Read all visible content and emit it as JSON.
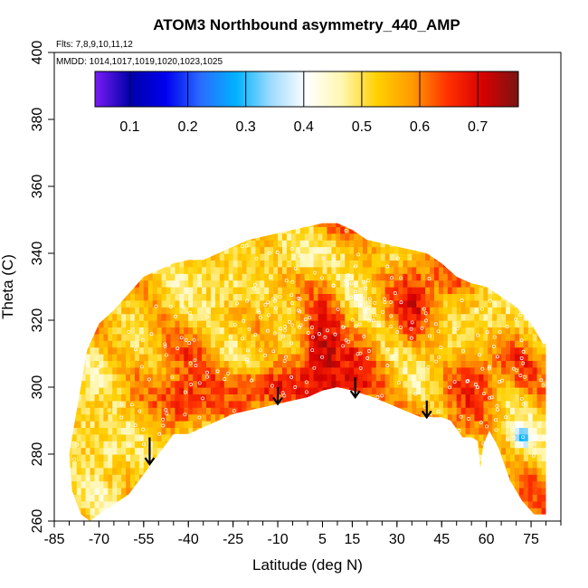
{
  "chart_data": {
    "type": "heatmap",
    "title": "ATOM3 Northbound asymmetry_440_AMP",
    "flights_note": "Flts: 7,8,9,10,11,12",
    "dates_note": "MMDD: 1014,1017,1019,1020,1023,1025",
    "xlabel": "Latitude (deg N)",
    "ylabel": "Theta (C)",
    "xlim": [
      -85,
      85
    ],
    "ylim": [
      260,
      400
    ],
    "x_ticks": [
      -85,
      -70,
      -55,
      -40,
      -25,
      -10,
      5,
      15,
      30,
      45,
      60,
      75
    ],
    "x_tick_labels": [
      "-85",
      "-70",
      "-55",
      "-40",
      "-25",
      "-10",
      "5",
      "15",
      "30",
      "45",
      "60",
      "75"
    ],
    "x_minor_step": 5,
    "y_ticks": [
      260,
      280,
      300,
      320,
      340,
      360,
      380,
      400
    ],
    "y_tick_labels": [
      "260",
      "280",
      "300",
      "320",
      "340",
      "360",
      "380",
      "400"
    ],
    "colorbar": {
      "range": [
        0.04,
        0.77
      ],
      "ticks": [
        0.1,
        0.2,
        0.3,
        0.4,
        0.5,
        0.6,
        0.7
      ],
      "tick_labels": [
        "0.1",
        "0.2",
        "0.3",
        "0.4",
        "0.5",
        "0.6",
        "0.7"
      ],
      "colors": [
        "#7a1cf5",
        "#0000a8",
        "#0000ee",
        "#2a6cff",
        "#00b2ff",
        "#9fdcff",
        "#ffffff",
        "#fff7b0",
        "#ffd000",
        "#ff9a00",
        "#ff3000",
        "#d80000",
        "#7a1414"
      ]
    },
    "domain_top": [
      [
        -74,
        311
      ],
      [
        -70,
        319
      ],
      [
        -65,
        323
      ],
      [
        -60,
        328
      ],
      [
        -55,
        333
      ],
      [
        -50,
        335
      ],
      [
        -45,
        337
      ],
      [
        -40,
        338
      ],
      [
        -35,
        338
      ],
      [
        -30,
        340
      ],
      [
        -25,
        342
      ],
      [
        -20,
        344
      ],
      [
        -15,
        345
      ],
      [
        -10,
        346
      ],
      [
        -5,
        347
      ],
      [
        0,
        348
      ],
      [
        5,
        349
      ],
      [
        10,
        349
      ],
      [
        15,
        347
      ],
      [
        20,
        344
      ],
      [
        25,
        343
      ],
      [
        30,
        342
      ],
      [
        35,
        341
      ],
      [
        40,
        340
      ],
      [
        45,
        337
      ],
      [
        50,
        333
      ],
      [
        55,
        331
      ],
      [
        60,
        330
      ],
      [
        65,
        327
      ],
      [
        70,
        324
      ],
      [
        75,
        319
      ],
      [
        79,
        313
      ],
      [
        80,
        313
      ]
    ],
    "domain_bottom": [
      [
        80,
        262
      ],
      [
        76,
        262
      ],
      [
        72,
        266
      ],
      [
        68,
        272
      ],
      [
        64,
        282
      ],
      [
        61,
        287
      ],
      [
        59,
        283
      ],
      [
        58,
        276
      ],
      [
        57,
        284
      ],
      [
        55,
        285
      ],
      [
        52,
        285
      ],
      [
        48,
        290
      ],
      [
        45,
        291
      ],
      [
        38,
        291
      ],
      [
        30,
        294
      ],
      [
        22,
        297
      ],
      [
        15,
        299
      ],
      [
        10,
        300
      ],
      [
        5,
        299
      ],
      [
        0,
        297
      ],
      [
        -5,
        296
      ],
      [
        -10,
        295
      ],
      [
        -15,
        294
      ],
      [
        -20,
        293
      ],
      [
        -25,
        292
      ],
      [
        -30,
        290
      ],
      [
        -35,
        288
      ],
      [
        -40,
        286
      ],
      [
        -45,
        286
      ],
      [
        -50,
        280
      ],
      [
        -55,
        274
      ],
      [
        -60,
        268
      ],
      [
        -65,
        265
      ],
      [
        -70,
        262
      ],
      [
        -73,
        260
      ],
      [
        -76,
        262
      ],
      [
        -79,
        269
      ],
      [
        -80,
        280
      ]
    ],
    "field_base": 0.55,
    "anomalies": [
      {
        "lat": 5,
        "theta": 310,
        "dlat": 7,
        "dtheta": 22,
        "value": 0.72
      },
      {
        "lat": 12,
        "theta": 302,
        "dlat": 10,
        "dtheta": 6,
        "value": 0.71
      },
      {
        "lat": -10,
        "theta": 300,
        "dlat": 18,
        "dtheta": 6,
        "value": 0.68
      },
      {
        "lat": -40,
        "theta": 296,
        "dlat": 12,
        "dtheta": 8,
        "value": 0.67
      },
      {
        "lat": 35,
        "theta": 325,
        "dlat": 6,
        "dtheta": 10,
        "value": 0.7
      },
      {
        "lat": 55,
        "theta": 300,
        "dlat": 8,
        "dtheta": 10,
        "value": 0.67
      },
      {
        "lat": -65,
        "theta": 282,
        "dlat": 12,
        "dtheta": 10,
        "value": 0.48
      },
      {
        "lat": -75,
        "theta": 292,
        "dlat": 6,
        "dtheta": 14,
        "value": 0.5
      },
      {
        "lat": -25,
        "theta": 330,
        "dlat": 20,
        "dtheta": 10,
        "value": 0.5
      },
      {
        "lat": 0,
        "theta": 340,
        "dlat": 14,
        "dtheta": 6,
        "value": 0.47
      },
      {
        "lat": 60,
        "theta": 322,
        "dlat": 10,
        "dtheta": 8,
        "value": 0.5
      },
      {
        "lat": 72,
        "theta": 285,
        "dlat": 2.5,
        "dtheta": 3,
        "value": 0.28
      }
    ],
    "arrows": [
      {
        "lat": -53,
        "theta_top": 285,
        "theta_bottom": 277
      },
      {
        "lat": -10,
        "theta_top": 300,
        "theta_bottom": 295
      },
      {
        "lat": 16,
        "theta_top": 303,
        "theta_bottom": 297
      },
      {
        "lat": 40,
        "theta_top": 296,
        "theta_bottom": 291
      }
    ],
    "sample_points": [
      {
        "lat": 5,
        "theta": 330,
        "count": 80
      },
      {
        "lat": -30,
        "theta": 305,
        "count": 50
      },
      {
        "lat": 45,
        "theta": 305,
        "count": 50
      },
      {
        "lat": -60,
        "theta": 300,
        "count": 30
      },
      {
        "lat": 65,
        "theta": 300,
        "count": 30
      },
      {
        "lat": 15,
        "theta": 310,
        "count": 40
      }
    ]
  }
}
